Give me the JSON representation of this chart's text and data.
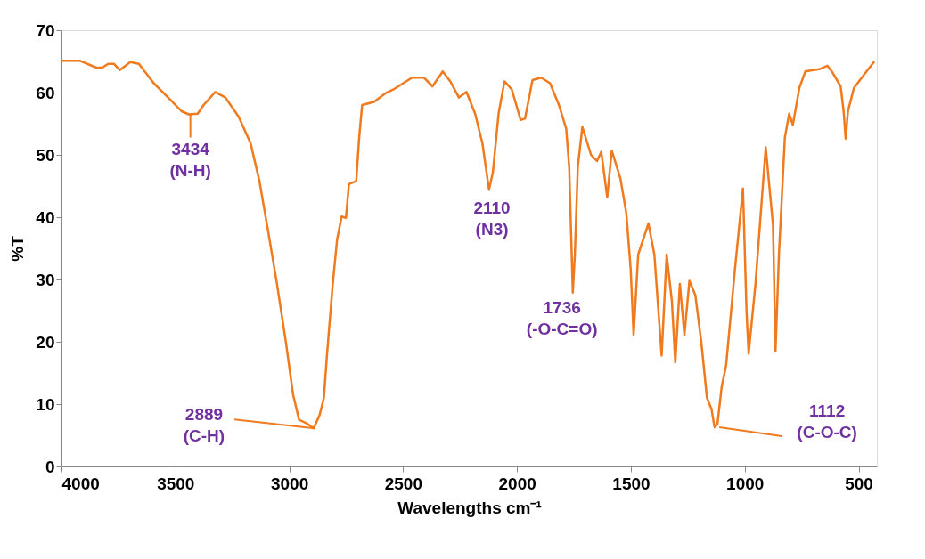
{
  "chart_data": {
    "type": "line",
    "xlabel": "Wavelengths cm⁻¹",
    "ylabel": "%T",
    "xlim": [
      4000,
      420
    ],
    "ylim": [
      0,
      70
    ],
    "xticks": [
      4000,
      3500,
      3000,
      2500,
      2000,
      1500,
      1000,
      500
    ],
    "yticks": [
      0,
      10,
      20,
      30,
      40,
      50,
      60,
      70
    ],
    "grid": false,
    "marker": "none",
    "line_style": "solid",
    "series": [
      {
        "color": "#f07a1e",
        "x": [
          4000,
          3918,
          3847,
          3821,
          3795,
          3769,
          3744,
          3698,
          3660,
          3595,
          3518,
          3473,
          3441,
          3402,
          3376,
          3325,
          3280,
          3222,
          3170,
          3131,
          3093,
          3054,
          3015,
          2983,
          2957,
          2918,
          2893,
          2867,
          2848,
          2835,
          2809,
          2790,
          2770,
          2751,
          2738,
          2706,
          2693,
          2680,
          2628,
          2577,
          2538,
          2461,
          2409,
          2371,
          2326,
          2293,
          2255,
          2222,
          2184,
          2152,
          2123,
          2106,
          2081,
          2055,
          2023,
          1984,
          1965,
          1932,
          1894,
          1855,
          1816,
          1784,
          1771,
          1755,
          1746,
          1733,
          1713,
          1675,
          1649,
          1630,
          1604,
          1584,
          1546,
          1520,
          1501,
          1488,
          1468,
          1423,
          1397,
          1365,
          1343,
          1320,
          1305,
          1285,
          1265,
          1243,
          1217,
          1191,
          1166,
          1146,
          1133,
          1120,
          1101,
          1082,
          1043,
          1008,
          992,
          983,
          953,
          908,
          876,
          865,
          850,
          824,
          805,
          789,
          760,
          734,
          669,
          637,
          618,
          579,
          566,
          557,
          547,
          521,
          476,
          431
        ],
        "values": [
          65.1,
          65.1,
          64.0,
          64.0,
          64.6,
          64.6,
          63.6,
          64.9,
          64.6,
          61.5,
          58.7,
          57.0,
          56.5,
          56.6,
          58.0,
          60.1,
          59.2,
          56.1,
          51.9,
          45.8,
          37.8,
          29.3,
          20.0,
          11.5,
          7.5,
          6.8,
          6.1,
          8.2,
          11.0,
          17.6,
          29.3,
          36.4,
          40.1,
          39.9,
          45.3,
          45.8,
          52.8,
          58.0,
          58.5,
          59.9,
          60.6,
          62.4,
          62.4,
          61.0,
          63.4,
          61.8,
          59.2,
          60.1,
          56.6,
          51.9,
          44.4,
          47.2,
          56.6,
          61.8,
          60.5,
          55.6,
          55.8,
          62.0,
          62.4,
          61.5,
          58.0,
          54.2,
          48.1,
          27.9,
          34.0,
          48.1,
          54.5,
          50.0,
          49.0,
          50.5,
          43.2,
          50.7,
          46.2,
          40.6,
          31.7,
          21.1,
          34.0,
          39.0,
          34.0,
          17.8,
          34.0,
          26.5,
          16.7,
          29.3,
          21.1,
          29.8,
          27.5,
          20.0,
          11.0,
          9.2,
          6.3,
          6.8,
          12.9,
          16.2,
          31.7,
          44.6,
          24.6,
          18.1,
          29.3,
          51.2,
          38.7,
          18.5,
          34.0,
          52.8,
          56.6,
          54.8,
          60.8,
          63.4,
          63.8,
          64.3,
          63.4,
          61.0,
          57.0,
          52.6,
          57.0,
          60.7,
          62.9,
          65.0
        ]
      }
    ],
    "annotations": [
      {
        "text": "3434\n(N-H)",
        "x": 3434,
        "y": 56.5
      },
      {
        "text": "2889\n(C-H)",
        "x": 2889,
        "y": 6.1
      },
      {
        "text": "2110\n(N3)",
        "x": 2110,
        "y": 44.4
      },
      {
        "text": "1736\n(-O-C=O)",
        "x": 1736,
        "y": 27.9
      },
      {
        "text": "1112\n(C-O-C)",
        "x": 1112,
        "y": 6.3
      }
    ]
  }
}
